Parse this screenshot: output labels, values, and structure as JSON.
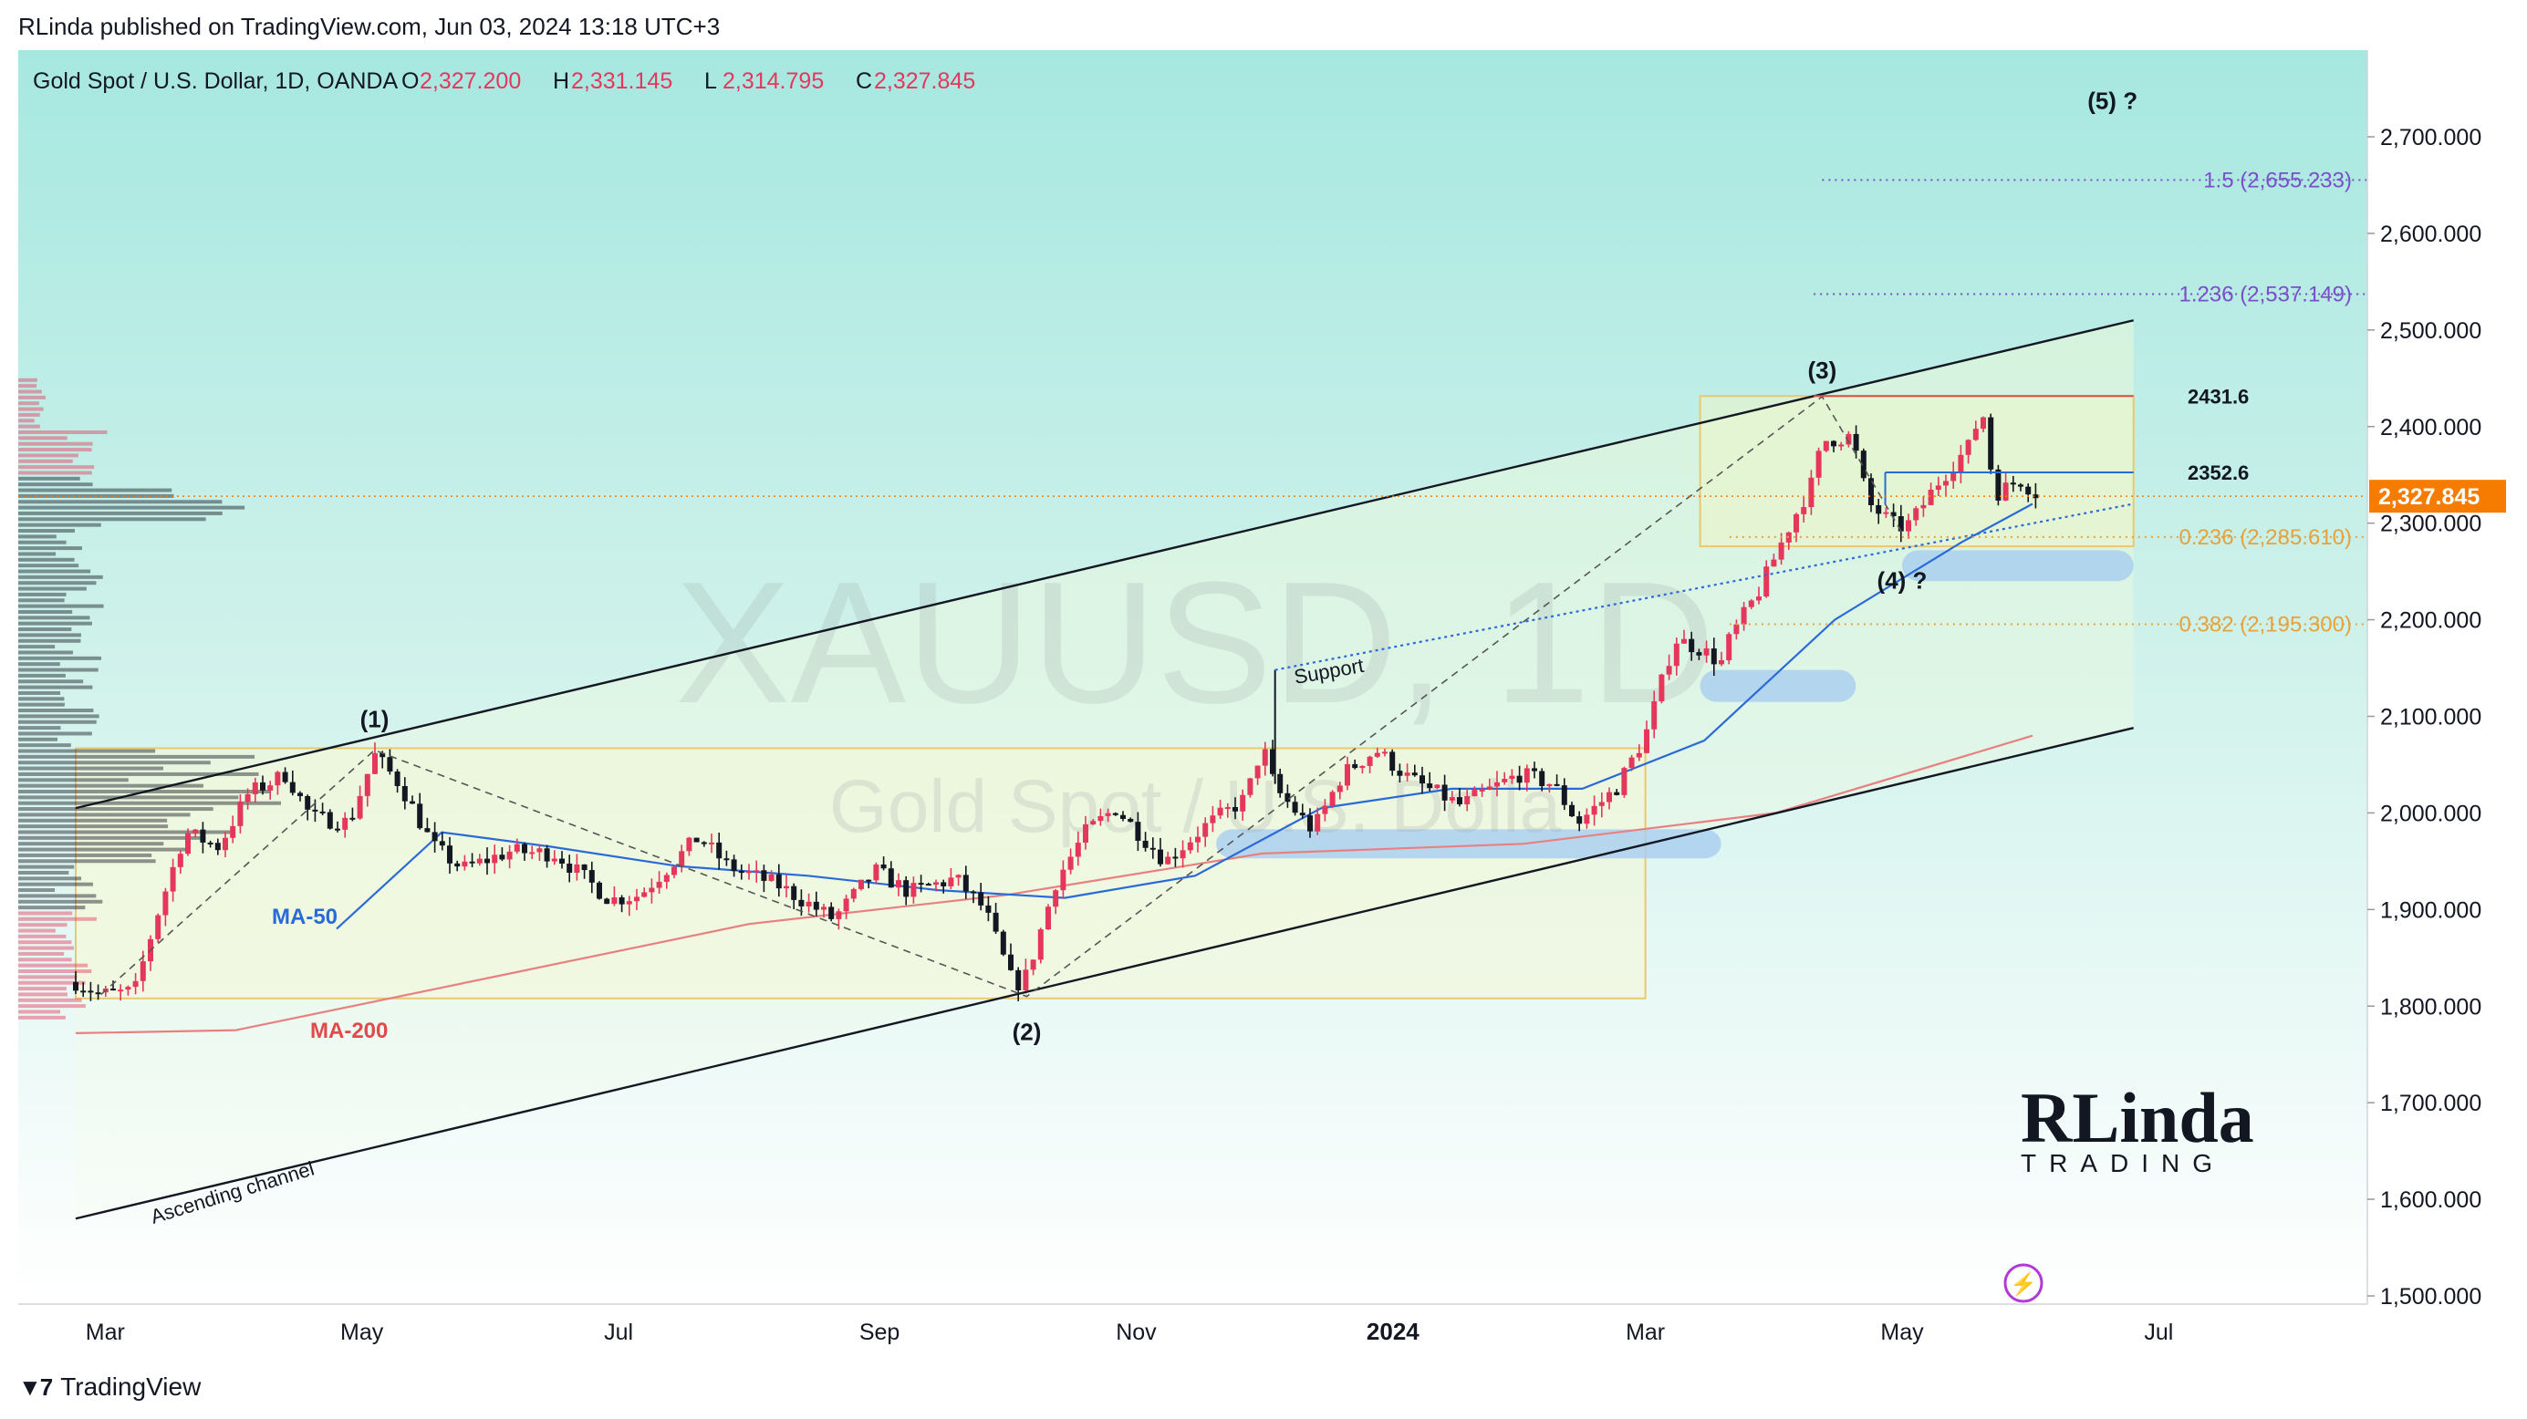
{
  "publisher": "RLinda published on TradingView.com, Jun 03, 2024 13:18 UTC+3",
  "footer": {
    "brand": "TradingView",
    "logo_icon": "tradingview-logo-icon"
  },
  "header": {
    "symbol": "Gold Spot / U.S. Dollar, 1D, OANDA",
    "o_label": "O",
    "o": "2,327.200",
    "h_label": "H",
    "h": "2,331.145",
    "l_label": "L",
    "l": "2,314.795",
    "c_label": "C",
    "c": "2,327.845"
  },
  "watermark": {
    "ticker": "XAUUSD, 1D",
    "name": "Gold Spot / U.S. Dolla"
  },
  "branding": {
    "logo_text": "RLinda",
    "tagline": "TRADING",
    "icon": "rlinda-trading-logo"
  },
  "colors": {
    "up": "#e5375c",
    "down": "#131722",
    "ma50": "#2a6ad8",
    "ma200": "#e88080",
    "price_tag": "#f57c00"
  },
  "chart_data": {
    "type": "candlestick",
    "symbol": "XAUUSD",
    "timeframe": "1D",
    "ylim": [
      1500,
      2760
    ],
    "y_ticks": [
      "2,700.000",
      "2,600.000",
      "2,500.000",
      "2,400.000",
      "2,300.000",
      "2,200.000",
      "2,100.000",
      "2,000.000",
      "1,900.000",
      "1,800.000",
      "1,700.000",
      "1,600.000",
      "1,500.000"
    ],
    "y_tick_values": [
      2700,
      2600,
      2500,
      2400,
      2300,
      2200,
      2100,
      2000,
      1900,
      1800,
      1700,
      1600,
      1500
    ],
    "x_ticks": [
      {
        "label": "Mar",
        "date": "2023-03-01"
      },
      {
        "label": "May",
        "date": "2023-05-01"
      },
      {
        "label": "Jul",
        "date": "2023-07-01"
      },
      {
        "label": "Sep",
        "date": "2023-09-01"
      },
      {
        "label": "Nov",
        "date": "2023-11-01"
      },
      {
        "label": "2024",
        "date": "2024-01-01",
        "bold": true
      },
      {
        "label": "Mar",
        "date": "2024-03-01"
      },
      {
        "label": "May",
        "date": "2024-05-01"
      },
      {
        "label": "Jul",
        "date": "2024-07-01"
      }
    ],
    "last_price": {
      "value": 2327.845,
      "label": "2,327.845"
    },
    "price_path": [
      [
        "2023-02-22",
        1825
      ],
      [
        "2023-02-28",
        1812
      ],
      [
        "2023-03-08",
        1815
      ],
      [
        "2023-03-13",
        1890
      ],
      [
        "2023-03-20",
        1980
      ],
      [
        "2023-03-28",
        1965
      ],
      [
        "2023-04-04",
        2020
      ],
      [
        "2023-04-13",
        2040
      ],
      [
        "2023-04-19",
        1995
      ],
      [
        "2023-04-28",
        1990
      ],
      [
        "2023-05-04",
        2060
      ],
      [
        "2023-05-10",
        2030
      ],
      [
        "2023-05-18",
        1965
      ],
      [
        "2023-05-25",
        1942
      ],
      [
        "2023-06-05",
        1960
      ],
      [
        "2023-06-16",
        1958
      ],
      [
        "2023-06-29",
        1910
      ],
      [
        "2023-07-06",
        1915
      ],
      [
        "2023-07-20",
        1975
      ],
      [
        "2023-07-27",
        1945
      ],
      [
        "2023-08-08",
        1925
      ],
      [
        "2023-08-21",
        1890
      ],
      [
        "2023-08-31",
        1940
      ],
      [
        "2023-09-08",
        1918
      ],
      [
        "2023-09-19",
        1932
      ],
      [
        "2023-09-26",
        1900
      ],
      [
        "2023-10-03",
        1820
      ],
      [
        "2023-10-06",
        1832
      ],
      [
        "2023-10-13",
        1930
      ],
      [
        "2023-10-20",
        1980
      ],
      [
        "2023-10-27",
        2005
      ],
      [
        "2023-11-08",
        1950
      ],
      [
        "2023-11-17",
        1985
      ],
      [
        "2023-11-27",
        2015
      ],
      [
        "2023-12-01",
        2070
      ],
      [
        "2023-12-04",
        2025
      ],
      [
        "2023-12-13",
        1982
      ],
      [
        "2023-12-20",
        2040
      ],
      [
        "2023-12-28",
        2065
      ],
      [
        "2024-01-05",
        2035
      ],
      [
        "2024-01-17",
        2008
      ],
      [
        "2024-01-31",
        2040
      ],
      [
        "2024-02-08",
        2030
      ],
      [
        "2024-02-14",
        1990
      ],
      [
        "2024-02-23",
        2025
      ],
      [
        "2024-03-01",
        2080
      ],
      [
        "2024-03-08",
        2180
      ],
      [
        "2024-03-14",
        2170
      ],
      [
        "2024-03-19",
        2155
      ],
      [
        "2024-03-21",
        2180
      ],
      [
        "2024-03-28",
        2230
      ],
      [
        "2024-04-04",
        2295
      ],
      [
        "2024-04-10",
        2345
      ],
      [
        "2024-04-12",
        2385
      ],
      [
        "2024-04-19",
        2390
      ],
      [
        "2024-04-23",
        2320
      ],
      [
        "2024-04-30",
        2295
      ],
      [
        "2024-05-03",
        2300
      ],
      [
        "2024-05-10",
        2345
      ],
      [
        "2024-05-17",
        2380
      ],
      [
        "2024-05-20",
        2420
      ],
      [
        "2024-05-23",
        2330
      ],
      [
        "2024-05-29",
        2345
      ],
      [
        "2024-06-03",
        2327
      ]
    ],
    "ma50_path": [
      [
        "2023-04-25",
        1880
      ],
      [
        "2023-05-20",
        1980
      ],
      [
        "2023-06-15",
        1965
      ],
      [
        "2023-07-15",
        1945
      ],
      [
        "2023-08-15",
        1935
      ],
      [
        "2023-09-15",
        1920
      ],
      [
        "2023-10-15",
        1912
      ],
      [
        "2023-11-15",
        1935
      ],
      [
        "2023-12-15",
        2005
      ],
      [
        "2024-01-15",
        2025
      ],
      [
        "2024-02-15",
        2025
      ],
      [
        "2024-03-15",
        2075
      ],
      [
        "2024-04-15",
        2200
      ],
      [
        "2024-05-15",
        2280
      ],
      [
        "2024-06-01",
        2320
      ]
    ],
    "ma200_path": [
      [
        "2023-02-22",
        1772
      ],
      [
        "2023-04-01",
        1775
      ],
      [
        "2023-06-01",
        1830
      ],
      [
        "2023-08-01",
        1885
      ],
      [
        "2023-10-01",
        1915
      ],
      [
        "2023-12-01",
        1958
      ],
      [
        "2024-02-01",
        1968
      ],
      [
        "2024-04-01",
        2000
      ],
      [
        "2024-06-01",
        2080
      ]
    ],
    "waves": [
      {
        "label": "(1)",
        "date": "2023-05-04",
        "price": 2070
      },
      {
        "label": "(2)",
        "date": "2023-10-06",
        "price": 1810
      },
      {
        "label": "(3)",
        "date": "2024-04-12",
        "price": 2431
      },
      {
        "label": "(4) ?",
        "date": "2024-05-01",
        "price": 2270
      },
      {
        "label": "(5) ?",
        "date": "2024-06-20",
        "price": 2710
      }
    ],
    "fib_levels": [
      {
        "label": "1.5 (2,655.233)",
        "price": 2655.233,
        "color": "purple"
      },
      {
        "label": "1.236 (2,537.149)",
        "price": 2537.149,
        "color": "purple"
      },
      {
        "label": "0.236 (2,285.610)",
        "price": 2285.61,
        "color": "orange"
      },
      {
        "label": "0.382 (2,195.300)",
        "price": 2195.3,
        "color": "orange"
      }
    ],
    "levels": [
      {
        "label": "2431.6",
        "price": 2431.6,
        "color": "#e04a4a"
      },
      {
        "label": "2352.6",
        "price": 2352.6,
        "color": "#2a6ad8"
      }
    ],
    "annotations": {
      "ma50": "MA-50",
      "ma200": "MA-200",
      "support": "Support",
      "channel": "Ascending channel"
    }
  }
}
